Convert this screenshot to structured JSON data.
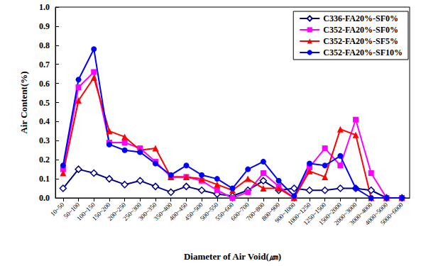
{
  "chart_data": {
    "type": "line",
    "x_label": "Diameter of Air Void(㎛)",
    "y_label": "Air Content(%)",
    "categories": [
      "10~50",
      "50~100",
      "100~150",
      "150~200",
      "200~250",
      "250~300",
      "300~350",
      "350~400",
      "400~450",
      "450~500",
      "500~550",
      "550~600",
      "600~700",
      "700~800",
      "800~900",
      "900~1000",
      "1000~1250",
      "1250~1500",
      "1500~2000",
      "2000~3000",
      "3000~4000",
      "4000~5000",
      "5000~6000"
    ],
    "ylim": [
      0,
      1
    ],
    "yticks": [
      {
        "value": 0,
        "label": "0.0"
      },
      0.1,
      0.2,
      0.3,
      0.4,
      0.5,
      0.6,
      0.7,
      0.8,
      0.9,
      {
        "value": 1,
        "label": "1.0"
      }
    ],
    "grid": false,
    "legend": "upper right",
    "series": [
      {
        "name": "C336-FA20%-SF0%",
        "color": "#000080",
        "marker": "open-diamond",
        "values": [
          0.05,
          0.15,
          0.13,
          0.1,
          0.07,
          0.09,
          0.06,
          0.03,
          0.06,
          0.04,
          0.02,
          0.01,
          0.04,
          0.09,
          0.04,
          0.05,
          0.04,
          0.04,
          0.05,
          0.05,
          0.04,
          0.0,
          0.0
        ]
      },
      {
        "name": "C352-FA20%-SF0%",
        "color": "#ff00ff",
        "marker": "square",
        "values": [
          0.15,
          0.58,
          0.66,
          0.29,
          0.29,
          0.26,
          0.19,
          0.11,
          0.11,
          0.09,
          0.04,
          0.0,
          0.03,
          0.13,
          0.06,
          0.0,
          0.16,
          0.26,
          0.17,
          0.41,
          0.13,
          0.0,
          0.0
        ]
      },
      {
        "name": "C352-FA20%-SF5%",
        "color": "#ff0000",
        "marker": "triangle",
        "values": [
          0.13,
          0.51,
          0.63,
          0.35,
          0.32,
          0.25,
          0.26,
          0.11,
          0.11,
          0.1,
          0.07,
          0.04,
          0.1,
          0.05,
          0.05,
          0.0,
          0.14,
          0.11,
          0.36,
          0.33,
          0.0,
          0.0,
          0.0
        ]
      },
      {
        "name": "C352-FA20%-SF10%",
        "color": "#0000ff",
        "marker": "circle",
        "values": [
          0.17,
          0.62,
          0.78,
          0.28,
          0.25,
          0.24,
          0.18,
          0.12,
          0.17,
          0.12,
          0.1,
          0.05,
          0.15,
          0.19,
          0.09,
          0.01,
          0.18,
          0.17,
          0.22,
          0.05,
          0.0,
          0.0,
          0.0
        ]
      }
    ]
  }
}
